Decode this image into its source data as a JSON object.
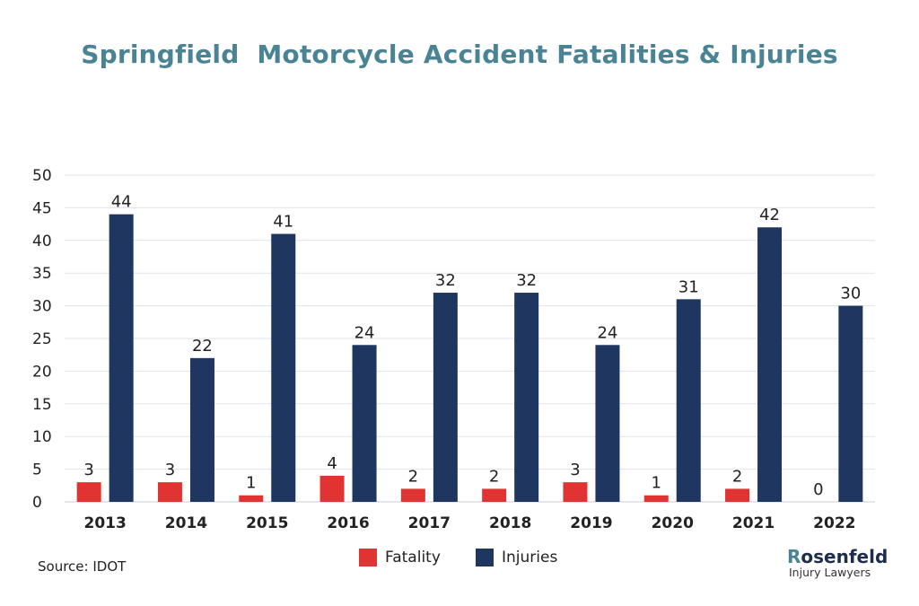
{
  "chart_data": {
    "type": "bar",
    "title": "Springfield  Motorcycle Accident Fatalities & Injuries",
    "categories": [
      "2013",
      "2014",
      "2015",
      "2016",
      "2017",
      "2018",
      "2019",
      "2020",
      "2021",
      "2022"
    ],
    "series": [
      {
        "name": "Fatality",
        "color": "#e23333",
        "values": [
          3,
          3,
          1,
          4,
          2,
          2,
          3,
          1,
          2,
          0
        ]
      },
      {
        "name": "Injuries",
        "color": "#1f3661",
        "values": [
          44,
          22,
          41,
          24,
          32,
          32,
          24,
          31,
          42,
          30
        ]
      }
    ],
    "ylim": [
      0,
      50
    ],
    "yticks": [
      0,
      5,
      10,
      15,
      20,
      25,
      30,
      35,
      40,
      45,
      50
    ],
    "grid": true,
    "legend_position": "bottom-center",
    "xlabel": "",
    "ylabel": ""
  },
  "source": "Source: IDOT",
  "logo": {
    "main": "osenfeld",
    "mark": "R",
    "sub": "Injury Lawyers"
  },
  "colors": {
    "title": "#4a8494",
    "grid": "#dfe3ea"
  }
}
